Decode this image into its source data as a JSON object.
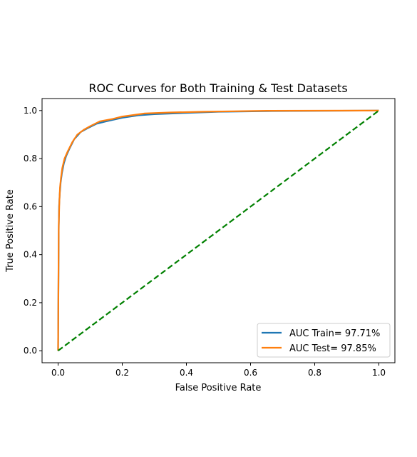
{
  "chart_data": {
    "type": "line",
    "title": "ROC Curves for Both Training & Test Datasets",
    "xlabel": "False Positive Rate",
    "ylabel": "True Positive Rate",
    "xlim": [
      -0.05,
      1.05
    ],
    "ylim": [
      -0.05,
      1.05
    ],
    "x_ticks": [
      "0.0",
      "0.2",
      "0.4",
      "0.6",
      "0.8",
      "1.0"
    ],
    "y_ticks": [
      "0.0",
      "0.2",
      "0.4",
      "0.6",
      "0.8",
      "1.0"
    ],
    "grid": false,
    "legend_position": "lower-right",
    "series": [
      {
        "name": "AUC Train= 97.71%",
        "color": "#1f77b4",
        "style": "solid",
        "x": [
          0,
          0.002,
          0.003,
          0.005,
          0.008,
          0.012,
          0.018,
          0.025,
          0.035,
          0.05,
          0.07,
          0.09,
          0.12,
          0.15,
          0.2,
          0.25,
          0.3,
          0.4,
          0.5,
          0.67,
          1.0
        ],
        "y": [
          0,
          0.5,
          0.6,
          0.65,
          0.7,
          0.74,
          0.78,
          0.81,
          0.84,
          0.88,
          0.91,
          0.925,
          0.945,
          0.955,
          0.97,
          0.98,
          0.985,
          0.99,
          0.995,
          0.998,
          1.0
        ]
      },
      {
        "name": "AUC Test= 97.85%",
        "color": "#ff7f0e",
        "style": "solid",
        "x": [
          0,
          0.002,
          0.004,
          0.006,
          0.009,
          0.013,
          0.02,
          0.03,
          0.045,
          0.06,
          0.08,
          0.1,
          0.13,
          0.17,
          0.2,
          0.27,
          0.35,
          0.45,
          0.55,
          0.65,
          1.0
        ],
        "y": [
          0,
          0.52,
          0.62,
          0.68,
          0.72,
          0.76,
          0.8,
          0.83,
          0.87,
          0.9,
          0.92,
          0.935,
          0.955,
          0.965,
          0.975,
          0.988,
          0.992,
          0.995,
          0.997,
          0.999,
          1.0
        ]
      },
      {
        "name": "",
        "color": "#008000",
        "style": "dashed",
        "x": [
          0,
          1
        ],
        "y": [
          0,
          1
        ]
      }
    ]
  }
}
